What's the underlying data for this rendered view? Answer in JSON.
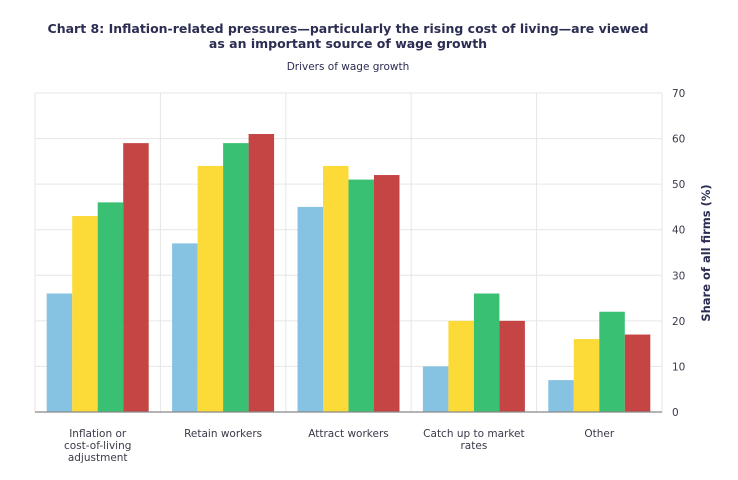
{
  "chart_data": {
    "type": "bar",
    "title": "Chart 8: Inflation-related pressures—particularly the rising cost of living—are viewed as an important source of wage growth",
    "title_lines": [
      "Chart 8: Inflation-related pressures—particularly the rising cost of living—are viewed",
      "as an important source of wage growth"
    ],
    "subtitle": "Drivers of wage growth",
    "xlabel": "",
    "ylabel": "Share of all firms (%)",
    "ylim": [
      0,
      70
    ],
    "yticks": [
      0,
      10,
      20,
      30,
      40,
      50,
      60,
      70
    ],
    "y_axis_side": "right",
    "grid": true,
    "categories": [
      "Inflation or cost-of-living adjustment",
      "Retain workers",
      "Attract workers",
      "Catch up to market rates",
      "Other"
    ],
    "category_lines": [
      [
        "Inflation or",
        "cost-of-living",
        "adjustment"
      ],
      [
        "Retain workers"
      ],
      [
        "Attract workers"
      ],
      [
        "Catch up to market",
        "rates"
      ],
      [
        "Other"
      ]
    ],
    "series": [
      {
        "color": "#7fbfe0",
        "values": [
          26,
          37,
          45,
          10,
          7
        ]
      },
      {
        "color": "#fcd92e",
        "values": [
          43,
          54,
          54,
          20,
          16
        ]
      },
      {
        "color": "#2ebd6b",
        "values": [
          46,
          59,
          51,
          26,
          22
        ]
      },
      {
        "color": "#c23b3b",
        "values": [
          59,
          61,
          52,
          20,
          17
        ]
      }
    ]
  }
}
